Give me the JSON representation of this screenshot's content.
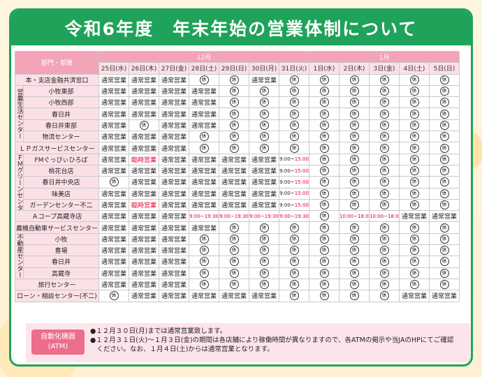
{
  "title": "令和6年度　年末年始の営業体制について",
  "header": {
    "dept_label": "部門・部署",
    "month_dec": "12月",
    "month_jan": "1月",
    "days": [
      "25日(水)",
      "26日(木)",
      "27日(金)",
      "28日(土)",
      "29日(日)",
      "30日(月)",
      "31日(火)",
      "1日(水)",
      "2日(木)",
      "3日(金)",
      "4日(土)",
      "5日(日)"
    ]
  },
  "off_mark": "休",
  "rows": [
    {
      "group": "",
      "name": "本・支店金融共済窓口",
      "cells": [
        "通常営業",
        "通常営業",
        "通常営業",
        "休",
        "休",
        "通常営業",
        "休",
        "休",
        "休",
        "休",
        "休",
        "休"
      ]
    },
    {
      "group": "営農生活センター",
      "name": "小牧東部",
      "cells": [
        "通常営業",
        "通常営業",
        "通常営業",
        "通常営業",
        "休",
        "休",
        "休",
        "休",
        "休",
        "休",
        "休",
        "休"
      ]
    },
    {
      "group": "",
      "name": "小牧西部",
      "cells": [
        "通常営業",
        "通常営業",
        "通常営業",
        "通常営業",
        "休",
        "休",
        "休",
        "休",
        "休",
        "休",
        "休",
        "休"
      ]
    },
    {
      "group": "",
      "name": "春日井",
      "cells": [
        "通常営業",
        "通常営業",
        "通常営業",
        "通常営業",
        "休",
        "休",
        "休",
        "休",
        "休",
        "休",
        "休",
        "休"
      ]
    },
    {
      "group": "",
      "name": "春日井東部",
      "cells": [
        "通常営業",
        "休",
        "通常営業",
        "通常営業",
        "休",
        "休",
        "休",
        "休",
        "休",
        "休",
        "休",
        "休"
      ]
    },
    {
      "group": "",
      "name": "物流センター",
      "cells": [
        "通常営業",
        "通常営業",
        "通常営業",
        "休",
        "休",
        "休",
        "休",
        "休",
        "休",
        "休",
        "休",
        "休"
      ]
    },
    {
      "group": "",
      "name": "ＬＰガスサービスセンター",
      "cells": [
        "通常営業",
        "通常営業",
        "通常営業",
        "休",
        "休",
        "休",
        "休",
        "休",
        "休",
        "休",
        "休",
        "休"
      ]
    },
    {
      "group": "ＦＭグリーンセンター",
      "name": "FMぐっぴぃひろば",
      "cells": [
        "通常営業",
        "臨時営業",
        "通常営業",
        "通常営業",
        "通常営業",
        "通常営業",
        "9:00~15:00",
        "休",
        "休",
        "休",
        "休",
        "休"
      ]
    },
    {
      "group": "",
      "name": "桃花台店",
      "cells": [
        "通常営業",
        "通常営業",
        "通常営業",
        "通常営業",
        "通常営業",
        "通常営業",
        "9:00~15:00",
        "休",
        "休",
        "休",
        "休",
        "休"
      ]
    },
    {
      "group": "",
      "name": "春日井中央店",
      "cells": [
        "休",
        "通常営業",
        "通常営業",
        "通常営業",
        "通常営業",
        "通常営業",
        "9:00~15:00",
        "休",
        "休",
        "休",
        "休",
        "休"
      ]
    },
    {
      "group": "",
      "name": "味美店",
      "cells": [
        "通常営業",
        "通常営業",
        "通常営業",
        "通常営業",
        "通常営業",
        "通常営業",
        "9:00~15:00",
        "休",
        "休",
        "休",
        "休",
        "休"
      ]
    },
    {
      "group": "",
      "name": "ガーデンセンター不二",
      "cells": [
        "通常営業",
        "臨時営業",
        "通常営業",
        "通常営業",
        "通常営業",
        "通常営業",
        "9:00~15:00",
        "休",
        "休",
        "休",
        "休",
        "休"
      ]
    },
    {
      "group": "",
      "name": "Ａコープ高蔵寺店",
      "cells": [
        "通常営業",
        "通常営業",
        "通常営業",
        "9:00~19:30",
        "9:00~19:30",
        "9:00~19:30",
        "9:00~19:30",
        "休",
        "10:00~18:00",
        "10:00~18:00",
        "通常営業",
        "通常営業"
      ]
    },
    {
      "group": "",
      "name": "農機自動車サービスセンター",
      "cells": [
        "通常営業",
        "通常営業",
        "通常営業",
        "通常営業",
        "休",
        "休",
        "休",
        "休",
        "休",
        "休",
        "休",
        "休"
      ]
    },
    {
      "group": "不動産センター",
      "name": "小牧",
      "cells": [
        "通常営業",
        "通常営業",
        "通常営業",
        "休",
        "休",
        "休",
        "休",
        "休",
        "休",
        "休",
        "休",
        "休"
      ]
    },
    {
      "group": "",
      "name": "豊場",
      "cells": [
        "通常営業",
        "通常営業",
        "通常営業",
        "休",
        "休",
        "休",
        "休",
        "休",
        "休",
        "休",
        "休",
        "休"
      ]
    },
    {
      "group": "",
      "name": "春日井",
      "cells": [
        "通常営業",
        "通常営業",
        "通常営業",
        "休",
        "休",
        "休",
        "休",
        "休",
        "休",
        "休",
        "休",
        "休"
      ]
    },
    {
      "group": "",
      "name": "高蔵寺",
      "cells": [
        "通常営業",
        "通常営業",
        "通常営業",
        "休",
        "休",
        "休",
        "休",
        "休",
        "休",
        "休",
        "休",
        "休"
      ]
    },
    {
      "group": "",
      "name": "旅行センター",
      "cells": [
        "通常営業",
        "通常営業",
        "通常営業",
        "休",
        "休",
        "休",
        "休",
        "休",
        "休",
        "休",
        "休",
        "休"
      ]
    },
    {
      "group": "",
      "name": "ローン・相談センター(不二)",
      "cells": [
        "休",
        "通常営業",
        "通常営業",
        "通常営業",
        "通常営業",
        "通常営業",
        "休",
        "休",
        "休",
        "休",
        "通常営業",
        "通常営業"
      ]
    }
  ],
  "notes": {
    "badge_line1": "自動化機器",
    "badge_line2": "(ATM)",
    "line1": "●１２月３０日(月)までは通常営業致します。",
    "line2": "●１２月３１日(火)～１月３日(金)の期間は各店舗により稼働時間が異なりますので、各ATMの掲示や当JAのHPにてご確認",
    "line3": "　ください。なお、１月４日(土)からは通常営業となります。"
  },
  "colors": {
    "green": "#1fa35a",
    "pink_header": "#f3a4b7",
    "pink_light": "#fbe1e7",
    "red": "#e60033"
  }
}
